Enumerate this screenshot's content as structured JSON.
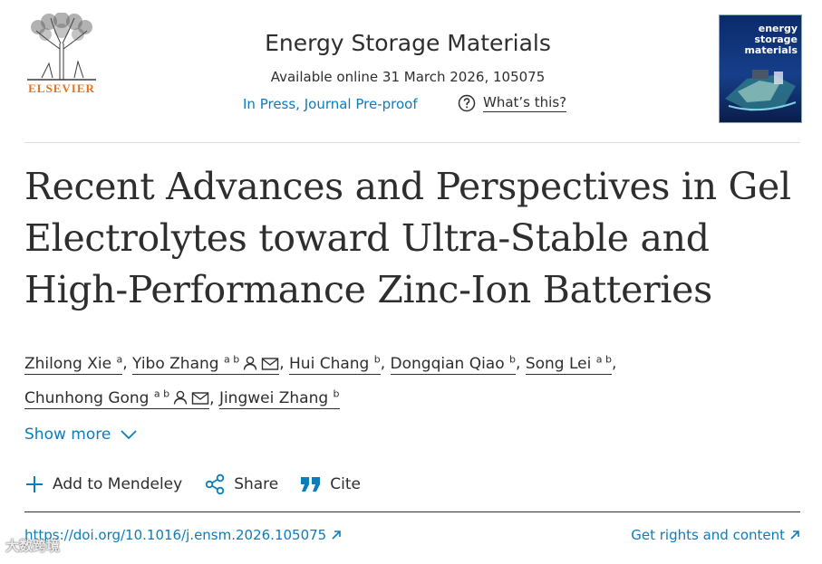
{
  "header": {
    "publisher": "ELSEVIER",
    "journal": "Energy Storage Materials",
    "available": "Available online 31 March 2026, 105075",
    "status_link": "In Press, Journal Pre-proof",
    "whats_this": "What’s this?",
    "cover_title": "energy storage materials"
  },
  "article": {
    "title": "Recent Advances and Perspectives in Gel Electrolytes toward Ultra-Stable and High-Performance Zinc-Ion Batteries",
    "authors": [
      {
        "name": "Zhilong Xie",
        "aff": "a",
        "sep": ","
      },
      {
        "name": "Yibo Zhang",
        "aff": "a b",
        "sep": ","
      },
      {
        "name": "Hui Chang",
        "aff": "b",
        "sep": ","
      },
      {
        "name": "Dongqian Qiao",
        "aff": "b",
        "sep": ","
      },
      {
        "name": "Song Lei",
        "aff": "a b",
        "sep": ","
      },
      {
        "name": "Chunhong Gong",
        "aff": "a b",
        "sep": ","
      },
      {
        "name": "Jingwei Zhang",
        "aff": "b",
        "sep": ""
      }
    ],
    "show_more": "Show more"
  },
  "actions": {
    "mendeley": "Add to Mendeley",
    "share": "Share",
    "cite": "Cite"
  },
  "links": {
    "doi": "https://doi.org/10.1016/j.ensm.2026.105075",
    "rights": "Get rights and content"
  },
  "watermark": "大数跨境",
  "colors": {
    "link": "#0c7dbb",
    "text": "#2e2e2e",
    "elsevier_orange": "#e9711c"
  }
}
